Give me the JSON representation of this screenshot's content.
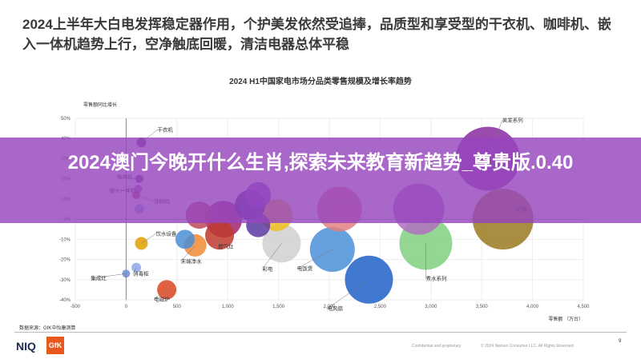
{
  "headline": "2024上半年大白电发挥稳定器作用，个护美发依然受追捧，品质型和享受型的干衣机、咖啡机、嵌入一体机趋势上行，空净触底回暖，清洁电器总体平稳",
  "overlay": {
    "text": "2024澳门今晚开什么生肖,探索未来教育新趋势_尊贵版.0.40"
  },
  "footer": {
    "source": "数据来源：GfK中怡康测算",
    "brand_niq": "NIQ",
    "brand_gfk": "GfK",
    "confidential": "Confidential and proprietary",
    "copyright": "© 2024 Nielsen Consumer LLC. All Rights Reserved.",
    "page": "9"
  },
  "colors": {
    "overlay": "#9646be",
    "axis": "#888888"
  },
  "chart_data": {
    "type": "scatter",
    "title": "2024 H1中国家电市场分品类零售规模及增长率趋势",
    "xlabel": "零售额 （万台）",
    "ylabel": "零售额同比增长",
    "xlim": [
      -500,
      4500
    ],
    "ylim": [
      -0.4,
      0.5
    ],
    "xticks": [
      "-500",
      "0",
      "500",
      "1,000",
      "1,500",
      "2,000",
      "2,500",
      "3,000",
      "3,500",
      "4,000",
      "4,500"
    ],
    "yticks": [
      "-40%",
      "-30%",
      "-20%",
      "-10%",
      "0%",
      "10%",
      "20%",
      "30%",
      "40%",
      "50%"
    ],
    "grid": true,
    "points": [
      {
        "label": "干衣机",
        "x": 150,
        "y": 0.38,
        "r": 6,
        "color": "#6a2d91"
      },
      {
        "label": "咖啡机",
        "x": 130,
        "y": 0.2,
        "r": 5,
        "color": "#7a2d9a"
      },
      {
        "label": "嵌入一体机",
        "x": 120,
        "y": 0.15,
        "r": 5,
        "color": "#b24ac6"
      },
      {
        "label": "洗碗机",
        "x": 100,
        "y": 0.12,
        "r": 5,
        "color": "#c23a6a"
      },
      {
        "label": "",
        "x": 130,
        "y": 0.05,
        "r": 6,
        "color": "#8ca4e0"
      },
      {
        "label": "饮水设备",
        "x": 150,
        "y": -0.12,
        "r": 8,
        "color": "#e0a000"
      },
      {
        "label": "消毒柜",
        "x": 100,
        "y": -0.24,
        "r": 6,
        "color": "#90a8e8"
      },
      {
        "label": "集成灶",
        "x": 0,
        "y": -0.27,
        "r": 5,
        "color": "#6c8dd6"
      },
      {
        "label": "电磁炉",
        "x": 400,
        "y": -0.35,
        "r": 12,
        "color": "#d94520"
      },
      {
        "label": "",
        "x": 580,
        "y": -0.1,
        "r": 12,
        "color": "#4a8ed6"
      },
      {
        "label": "末端净水",
        "x": 680,
        "y": -0.13,
        "r": 14,
        "color": "#f08a35"
      },
      {
        "label": "",
        "x": 720,
        "y": 0.02,
        "r": 17,
        "color": "#c04a5a"
      },
      {
        "label": "燃气灶",
        "x": 920,
        "y": -0.08,
        "r": 18,
        "color": "#c0392b"
      },
      {
        "label": "",
        "x": 960,
        "y": 0.0,
        "r": 23,
        "color": "#a0246a"
      },
      {
        "label": "",
        "x": 1220,
        "y": 0.07,
        "r": 19,
        "color": "#3a2a8a"
      },
      {
        "label": "",
        "x": 1300,
        "y": -0.03,
        "r": 15,
        "color": "#5a3aa0"
      },
      {
        "label": "",
        "x": 1480,
        "y": 0.02,
        "r": 20,
        "color": "#f0c020"
      },
      {
        "label": "",
        "x": 1300,
        "y": 0.12,
        "r": 16,
        "color": "#8a4ac0"
      },
      {
        "label": "彩电",
        "x": 1530,
        "y": -0.12,
        "r": 24,
        "color": "#d0d0d0"
      },
      {
        "label": "电饭煲",
        "x": 2030,
        "y": -0.15,
        "r": 28,
        "color": "#4a90d8"
      },
      {
        "label": "",
        "x": 2100,
        "y": 0.05,
        "r": 28,
        "color": "#e08080"
      },
      {
        "label": "电风扇",
        "x": 2390,
        "y": -0.3,
        "r": 30,
        "color": "#2060c8"
      },
      {
        "label": "",
        "x": 2880,
        "y": 0.05,
        "r": 32,
        "color": "#b070c0"
      },
      {
        "label": "煮水系列",
        "x": 2950,
        "y": -0.12,
        "r": 33,
        "color": "#80d080"
      },
      {
        "label": "美发系列",
        "x": 3560,
        "y": 0.3,
        "r": 40,
        "color": "#8a2aa0"
      },
      {
        "label": "空调",
        "x": 3710,
        "y": 0.0,
        "r": 38,
        "color": "#9a7a20"
      }
    ]
  }
}
